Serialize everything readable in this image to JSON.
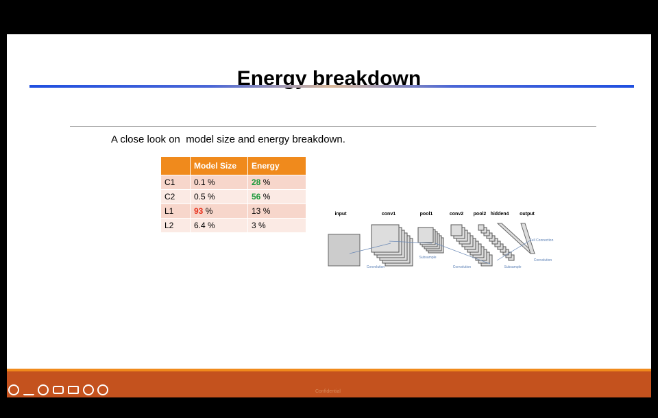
{
  "slide": {
    "title": "Energy breakdown",
    "subtitle": "A close look on  model size and energy breakdown.",
    "table": {
      "header": [
        "",
        "Model Size",
        "Energy"
      ],
      "rows": [
        [
          {
            "num": "C1"
          },
          {
            "num": "0.1",
            "unit": "%"
          },
          {
            "num": "28",
            "unit": "%",
            "color": "#1e9a3c"
          }
        ],
        [
          {
            "num": "C2"
          },
          {
            "num": "0.5",
            "unit": "%"
          },
          {
            "num": "56",
            "unit": "%",
            "color": "#1e9a3c"
          }
        ],
        [
          {
            "num": "L1"
          },
          {
            "num": "93",
            "unit": "%",
            "color": "#e8301c"
          },
          {
            "num": "13",
            "unit": "%"
          }
        ],
        [
          {
            "num": "L2"
          },
          {
            "num": "6.4",
            "unit": "%"
          },
          {
            "num": "3",
            "unit": "%"
          }
        ]
      ]
    },
    "diagram": {
      "layers": [
        "input",
        "conv1",
        "pool1",
        "conv2",
        "pool2",
        "hidden4",
        "output"
      ],
      "ops": [
        "Convolution",
        "Subsample",
        "Convolution",
        "Subsample",
        "Full Connection",
        "Convolution"
      ]
    },
    "footer": "Confidential"
  }
}
